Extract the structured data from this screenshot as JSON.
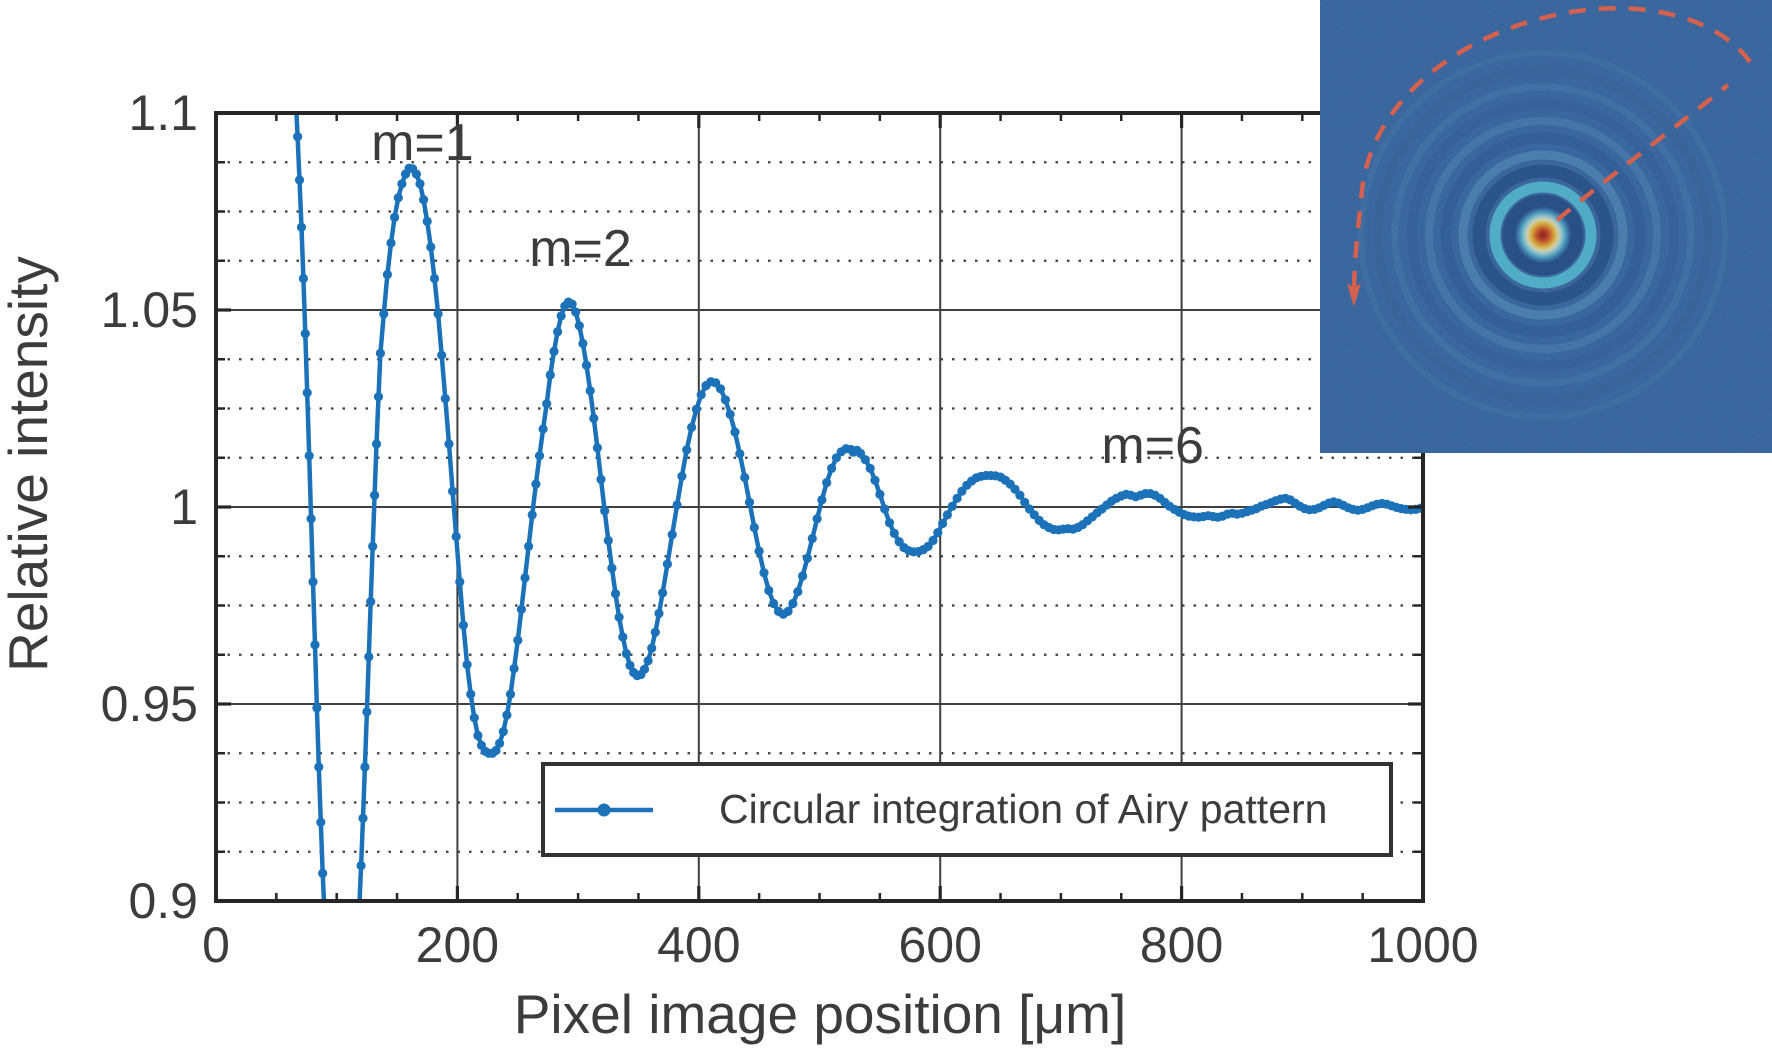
{
  "chart_data": {
    "type": "line",
    "title": "",
    "xlabel": "Pixel image position [μm]",
    "ylabel": "Relative intensity",
    "xlim": [
      0,
      1000
    ],
    "ylim": [
      0.9,
      1.1
    ],
    "xticks": [
      {
        "v": 0,
        "label": "0"
      },
      {
        "v": 200,
        "label": "200"
      },
      {
        "v": 400,
        "label": "400"
      },
      {
        "v": 600,
        "label": "600"
      },
      {
        "v": 800,
        "label": "800"
      },
      {
        "v": 1000,
        "label": "1000"
      }
    ],
    "yticks": [
      {
        "v": 0.9,
        "label": "0.9"
      },
      {
        "v": 0.95,
        "label": "0.95"
      },
      {
        "v": 1.0,
        "label": "1"
      },
      {
        "v": 1.05,
        "label": "1.05"
      },
      {
        "v": 1.1,
        "label": "1.1"
      }
    ],
    "x_minor_step": 50,
    "y_minor_step": 0.0125,
    "grid": "major solid, y-minor dotted",
    "legend": {
      "position": "lower center",
      "entries": [
        "Circular integration of Airy pattern"
      ]
    },
    "annotations": [
      {
        "label": "m=1",
        "x": 171,
        "y": 1.0925
      },
      {
        "label": "m=2",
        "x": 302,
        "y": 1.0655
      },
      {
        "label": "m=6",
        "x": 776,
        "y": 1.0155
      }
    ],
    "series": [
      {
        "name": "Circular integration of Airy pattern",
        "marker": "dot",
        "points": [
          [
            66,
            1.104
          ],
          [
            67.6,
            1.094
          ],
          [
            69.2,
            1.083
          ],
          [
            70.8,
            1.071
          ],
          [
            72.4,
            1.058
          ],
          [
            74,
            1.044
          ],
          [
            75.6,
            1.029
          ],
          [
            77.2,
            1.013
          ],
          [
            78.8,
            0.997
          ],
          [
            80.4,
            0.981
          ],
          [
            82,
            0.965
          ],
          [
            83.6,
            0.949
          ],
          [
            85.2,
            0.934
          ],
          [
            86.8,
            0.92
          ],
          [
            88.4,
            0.907
          ],
          [
            90,
            0.896
          ],
          [
            91.6,
            0.887
          ],
          [
            94,
            0.8745
          ],
          [
            97,
            0.8645
          ],
          [
            100,
            0.859
          ],
          [
            103,
            0.857
          ],
          [
            106,
            0.8585
          ],
          [
            109,
            0.8635
          ],
          [
            112,
            0.871
          ],
          [
            115,
            0.881
          ],
          [
            117,
            0.8885
          ],
          [
            118.6,
            0.898
          ],
          [
            120.2,
            0.909
          ],
          [
            121.8,
            0.921
          ],
          [
            123.4,
            0.934
          ],
          [
            125,
            0.948
          ],
          [
            126.6,
            0.962
          ],
          [
            128.2,
            0.976
          ],
          [
            129.8,
            0.99
          ],
          [
            131.4,
            1.003
          ],
          [
            133,
            1.016
          ],
          [
            134.6,
            1.028
          ],
          [
            136.2,
            1.039
          ],
          [
            139,
            1.049
          ],
          [
            142,
            1.059
          ],
          [
            145,
            1.067
          ],
          [
            148,
            1.0735
          ],
          [
            151,
            1.0785
          ],
          [
            154,
            1.082
          ],
          [
            157,
            1.0845
          ],
          [
            160,
            1.086
          ],
          [
            163,
            1.0858
          ],
          [
            166,
            1.0845
          ],
          [
            169,
            1.082
          ],
          [
            172,
            1.078
          ],
          [
            175,
            1.0725
          ],
          [
            178,
            1.066
          ],
          [
            181,
            1.058
          ],
          [
            184,
            1.049
          ],
          [
            187,
            1.0385
          ],
          [
            190,
            1.0275
          ],
          [
            193,
            1.016
          ],
          [
            196,
            1.004
          ],
          [
            199,
            0.9925
          ],
          [
            202,
            0.981
          ],
          [
            205,
            0.97
          ],
          [
            208,
            0.96
          ],
          [
            211,
            0.9525
          ],
          [
            214,
            0.9465
          ],
          [
            217,
            0.942
          ],
          [
            220,
            0.9395
          ],
          [
            223,
            0.938
          ],
          [
            226,
            0.9375
          ],
          [
            229,
            0.9375
          ],
          [
            232,
            0.9382
          ],
          [
            235,
            0.94
          ],
          [
            238,
            0.943
          ],
          [
            241,
            0.9472
          ],
          [
            244,
            0.9525
          ],
          [
            247,
            0.959
          ],
          [
            250,
            0.9662
          ],
          [
            253,
            0.974
          ],
          [
            256,
            0.982
          ],
          [
            259,
            0.99
          ],
          [
            262,
            0.998
          ],
          [
            265,
            1.0058
          ],
          [
            268,
            1.013
          ],
          [
            271,
            1.0198
          ],
          [
            274,
            1.0262
          ],
          [
            277,
            1.0335
          ],
          [
            280,
            1.0395
          ],
          [
            283,
            1.0445
          ],
          [
            286,
            1.0485
          ],
          [
            289,
            1.051
          ],
          [
            292,
            1.052
          ],
          [
            295,
            1.0515
          ],
          [
            298,
            1.0495
          ],
          [
            301,
            1.046
          ],
          [
            304,
            1.0415
          ],
          [
            307,
            1.036
          ],
          [
            310,
            1.0295
          ],
          [
            313,
            1.0225
          ],
          [
            316,
            1.015
          ],
          [
            319,
            1.007
          ],
          [
            322,
            0.999
          ],
          [
            325,
            0.9915
          ],
          [
            328,
            0.9845
          ],
          [
            331,
            0.978
          ],
          [
            334,
            0.972
          ],
          [
            337,
            0.967
          ],
          [
            340,
            0.9628
          ],
          [
            343,
            0.9598
          ],
          [
            346,
            0.958
          ],
          [
            349,
            0.9572
          ],
          [
            352,
            0.9575
          ],
          [
            355,
            0.9588
          ],
          [
            358,
            0.961
          ],
          [
            361,
            0.9642
          ],
          [
            364,
            0.9682
          ],
          [
            367,
            0.973
          ],
          [
            370,
            0.9782
          ],
          [
            374,
            0.9855
          ],
          [
            378,
            0.993
          ],
          [
            382,
            1.0005
          ],
          [
            386,
            1.0078
          ],
          [
            390,
            1.0145
          ],
          [
            394,
            1.0202
          ],
          [
            398,
            1.0248
          ],
          [
            402,
            1.0285
          ],
          [
            406,
            1.0308
          ],
          [
            410,
            1.0318
          ],
          [
            414,
            1.0315
          ],
          [
            418,
            1.03
          ],
          [
            422,
            1.0272
          ],
          [
            426,
            1.0235
          ],
          [
            430,
            1.019
          ],
          [
            434,
            1.0135
          ],
          [
            438,
            1.0075
          ],
          [
            442,
            1.0012
          ],
          [
            446,
            0.9948
          ],
          [
            450,
            0.9888
          ],
          [
            454,
            0.9833
          ],
          [
            458,
            0.9788
          ],
          [
            462,
            0.9755
          ],
          [
            466,
            0.9735
          ],
          [
            470,
            0.9728
          ],
          [
            474,
            0.9735
          ],
          [
            478,
            0.9755
          ],
          [
            482,
            0.9785
          ],
          [
            486,
            0.9825
          ],
          [
            490,
            0.987
          ],
          [
            494,
            0.992
          ],
          [
            498,
            0.997
          ],
          [
            502,
            1.0018
          ],
          [
            506,
            1.0062
          ],
          [
            510,
            1.0098
          ],
          [
            514,
            1.0125
          ],
          [
            518,
            1.014
          ],
          [
            522,
            1.0148
          ],
          [
            526,
            1.0146
          ],
          [
            528,
            1.0139
          ],
          [
            531,
            1.0144
          ],
          [
            534,
            1.0136
          ],
          [
            538,
            1.012
          ],
          [
            542,
            1.0098
          ],
          [
            546,
            1.0068
          ],
          [
            550,
            1.0032
          ],
          [
            554,
            0.9995
          ],
          [
            558,
            0.996
          ],
          [
            562,
            0.9933
          ],
          [
            566,
            0.9912
          ],
          [
            570,
            0.9897
          ],
          [
            574,
            0.9889
          ],
          [
            578,
            0.9886
          ],
          [
            582,
            0.9887
          ],
          [
            586,
            0.9892
          ],
          [
            590,
            0.99
          ],
          [
            594,
            0.9915
          ],
          [
            598,
            0.9935
          ],
          [
            602,
            0.9958
          ],
          [
            606,
            0.998
          ],
          [
            610,
            1.0002
          ],
          [
            614,
            1.0022
          ],
          [
            618,
            1.004
          ],
          [
            622,
            1.0055
          ],
          [
            626,
            1.0066
          ],
          [
            630,
            1.0074
          ],
          [
            634,
            1.0078
          ],
          [
            638,
            1.008
          ],
          [
            642,
            1.008
          ],
          [
            646,
            1.0079
          ],
          [
            650,
            1.0076
          ],
          [
            654,
            1.0068
          ],
          [
            658,
            1.0058
          ],
          [
            662,
            1.0045
          ],
          [
            666,
            1.003
          ],
          [
            670,
            1.0012
          ],
          [
            674,
            0.9995
          ],
          [
            678,
            0.998
          ],
          [
            682,
            0.9966
          ],
          [
            686,
            0.9955
          ],
          [
            690,
            0.9948
          ],
          [
            694,
            0.9943
          ],
          [
            698,
            0.9942
          ],
          [
            702,
            0.9944
          ],
          [
            706,
            0.9945
          ],
          [
            710,
            0.9944
          ],
          [
            714,
            0.9948
          ],
          [
            718,
            0.9955
          ],
          [
            722,
            0.9965
          ],
          [
            726,
            0.9975
          ],
          [
            730,
            0.9985
          ],
          [
            734,
            0.9995
          ],
          [
            738,
            1.0005
          ],
          [
            742,
            1.0015
          ],
          [
            746,
            1.0022
          ],
          [
            750,
            1.0028
          ],
          [
            754,
            1.0032
          ],
          [
            758,
            1.003
          ],
          [
            762,
            1.0026
          ],
          [
            766,
            1.003
          ],
          [
            770,
            1.0034
          ],
          [
            774,
            1.0034
          ],
          [
            778,
            1.003
          ],
          [
            782,
            1.0022
          ],
          [
            786,
            1.0012
          ],
          [
            790,
            1.0002
          ],
          [
            794,
            0.9994
          ],
          [
            798,
            0.9987
          ],
          [
            802,
            0.9981
          ],
          [
            806,
            0.9977
          ],
          [
            810,
            0.9975
          ],
          [
            814,
            0.9974
          ],
          [
            818,
            0.9976
          ],
          [
            822,
            0.9978
          ],
          [
            826,
            0.9976
          ],
          [
            830,
            0.9974
          ],
          [
            834,
            0.9977
          ],
          [
            838,
            0.9982
          ],
          [
            842,
            0.9984
          ],
          [
            846,
            0.9982
          ],
          [
            850,
            0.9984
          ],
          [
            854,
            0.9988
          ],
          [
            858,
            0.9992
          ],
          [
            862,
            0.9996
          ],
          [
            866,
            1.0002
          ],
          [
            870,
            1.0006
          ],
          [
            874,
            1.0011
          ],
          [
            878,
            1.0016
          ],
          [
            882,
            1.002
          ],
          [
            886,
            1.0022
          ],
          [
            890,
            1.0018
          ],
          [
            894,
            1.001
          ],
          [
            898,
            1.0002
          ],
          [
            902,
            0.9996
          ],
          [
            906,
            0.9993
          ],
          [
            910,
            0.9994
          ],
          [
            914,
            0.9998
          ],
          [
            918,
            1.0004
          ],
          [
            922,
            1.001
          ],
          [
            926,
            1.0013
          ],
          [
            930,
            1.001
          ],
          [
            934,
            1.0004
          ],
          [
            938,
            0.9998
          ],
          [
            942,
            0.9994
          ],
          [
            946,
            0.9992
          ],
          [
            950,
            0.9994
          ],
          [
            954,
            0.9998
          ],
          [
            958,
            1.0003
          ],
          [
            962,
            1.0007
          ],
          [
            966,
            1.0009
          ],
          [
            970,
            1.0007
          ],
          [
            974,
            1.0003
          ],
          [
            978,
            0.9999
          ],
          [
            982,
            0.9996
          ],
          [
            986,
            0.9994
          ],
          [
            990,
            0.9993
          ],
          [
            994,
            0.9994
          ],
          [
            998,
            0.9997
          ],
          [
            1002,
            1.0
          ],
          [
            1005,
            1.0002
          ]
        ]
      }
    ]
  },
  "colors": {
    "line_blue": "#1C72B8",
    "text": "#3C3C3C",
    "spine": "#262626",
    "grid": "#3F3F3F",
    "inset_background": "#2D68B0",
    "inset_arrow": "#D4604E"
  },
  "inset": {
    "name": "airy-pattern-image",
    "content": "camera image of Airy diffraction pattern with dashed circular-integration arrow"
  }
}
